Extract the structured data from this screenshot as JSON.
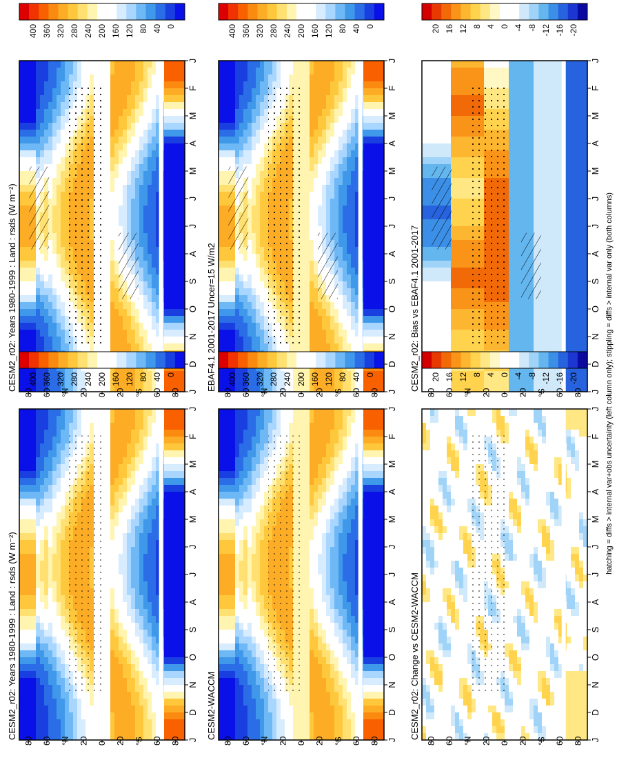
{
  "footnote": "hatching = diffs > internal var+obs uncertainty (left column only); stippling = diffs > internal var only (both columns)",
  "chart_data": [
    {
      "type": "heatmap",
      "title": "CESM2_r02: Years 1980-1999 : Land : rsds (W m⁻²)",
      "x_ticks": [
        "J",
        "F",
        "M",
        "A",
        "M",
        "J",
        "J",
        "A",
        "S",
        "O",
        "N",
        "D",
        "J"
      ],
      "y_ticks": [
        "80",
        "60",
        "°N",
        "20",
        "0",
        "20",
        "°S",
        "60",
        "80"
      ],
      "colorbar_ticks": [
        "400",
        "360",
        "320",
        "280",
        "240",
        "200",
        "160",
        "120",
        "80",
        "40",
        "0"
      ]
    },
    {
      "type": "heatmap",
      "title": "EBAF4.1 2001-2017 Uncer=15 W/m2",
      "x_ticks": [
        "J",
        "F",
        "M",
        "A",
        "M",
        "J",
        "J",
        "A",
        "S",
        "O",
        "N",
        "D",
        "J"
      ],
      "y_ticks": [
        "80",
        "60",
        "°N",
        "20",
        "0",
        "20",
        "°S",
        "60",
        "80"
      ],
      "colorbar_ticks": [
        "400",
        "360",
        "320",
        "280",
        "240",
        "200",
        "160",
        "120",
        "80",
        "40",
        "0"
      ]
    },
    {
      "type": "heatmap",
      "title": "CESM2_r02: Bias vs EBAF4.1 2001-2017",
      "x_ticks": [
        "J",
        "F",
        "M",
        "A",
        "M",
        "J",
        "J",
        "A",
        "S",
        "O",
        "N",
        "D",
        "J"
      ],
      "y_ticks": [
        "80",
        "60",
        "°N",
        "20",
        "0",
        "20",
        "°S",
        "60",
        "80"
      ],
      "colorbar_ticks": [
        "20",
        "16",
        "12",
        "8",
        "4",
        "0",
        "-4",
        "-8",
        "-12",
        "-16",
        "-20"
      ]
    },
    {
      "type": "heatmap",
      "title": "CESM2_r02: Years 1980-1999 : Land : rsds (W m⁻²)",
      "x_ticks": [
        "J",
        "F",
        "M",
        "A",
        "M",
        "J",
        "J",
        "A",
        "S",
        "O",
        "N",
        "D",
        "J"
      ],
      "y_ticks": [
        "80",
        "60",
        "°N",
        "20",
        "0",
        "20",
        "°S",
        "60",
        "80"
      ],
      "colorbar_ticks": [
        "400",
        "360",
        "320",
        "280",
        "240",
        "200",
        "160",
        "120",
        "80",
        "40",
        "0"
      ]
    },
    {
      "type": "heatmap",
      "title": "CESM2-WACCM",
      "x_ticks": [
        "J",
        "F",
        "M",
        "A",
        "M",
        "J",
        "J",
        "A",
        "S",
        "O",
        "N",
        "D",
        "J"
      ],
      "y_ticks": [
        "80",
        "60",
        "°N",
        "20",
        "0",
        "20",
        "°S",
        "60",
        "80"
      ],
      "colorbar_ticks": [
        "400",
        "360",
        "320",
        "280",
        "240",
        "200",
        "160",
        "120",
        "80",
        "40",
        "0"
      ]
    },
    {
      "type": "heatmap",
      "title": "CESM2_r02: Change vs CESM2-WACCM",
      "x_ticks": [
        "J",
        "F",
        "M",
        "A",
        "M",
        "J",
        "J",
        "A",
        "S",
        "O",
        "N",
        "D",
        "J"
      ],
      "y_ticks": [
        "80",
        "60",
        "°N",
        "20",
        "0",
        "20",
        "°S",
        "60",
        "80"
      ],
      "colorbar_ticks": [
        "20",
        "16",
        "12",
        "8",
        "4",
        "0",
        "-4",
        "-8",
        "-12",
        "-16",
        "-20"
      ]
    }
  ]
}
